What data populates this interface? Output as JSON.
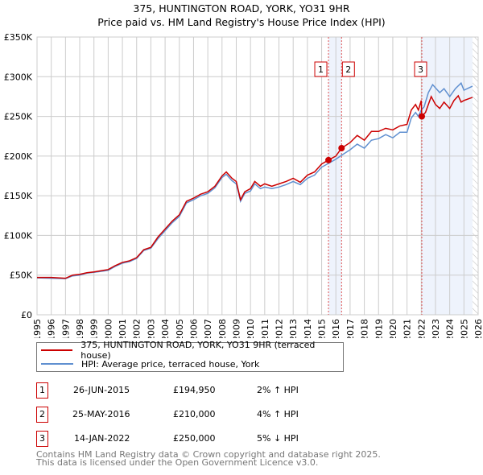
{
  "chart_data": {
    "type": "line",
    "title": "375, HUNTINGTON ROAD, YORK, YO31 9HR",
    "subtitle": "Price paid vs. HM Land Registry's House Price Index (HPI)",
    "xlim": [
      1995,
      2026
    ],
    "ylim": [
      0,
      350000
    ],
    "y_ticks": [
      0,
      50000,
      100000,
      150000,
      200000,
      250000,
      300000,
      350000
    ],
    "y_tick_labels": [
      "£0",
      "£50K",
      "£100K",
      "£150K",
      "£200K",
      "£250K",
      "£300K",
      "£350K"
    ],
    "x_ticks": [
      1995,
      1996,
      1997,
      1998,
      1999,
      2000,
      2001,
      2002,
      2003,
      2004,
      2005,
      2006,
      2007,
      2008,
      2009,
      2010,
      2011,
      2012,
      2013,
      2014,
      2015,
      2016,
      2017,
      2018,
      2019,
      2020,
      2021,
      2022,
      2023,
      2024,
      2025,
      2026
    ],
    "grid": true,
    "colors": {
      "property": "#cc0000",
      "hpi": "#6090d0",
      "shade": "#eef3fc"
    },
    "series": [
      {
        "name": "375, HUNTINGTON ROAD, YORK, YO31 9HR (terraced house)",
        "x": [
          1995,
          1996,
          1997,
          1997.5,
          1998,
          1998.5,
          1999,
          2000,
          2000.5,
          2001,
          2001.5,
          2002,
          2002.5,
          2003,
          2003.5,
          2004,
          2004.5,
          2005,
          2005.5,
          2006,
          2006.5,
          2007,
          2007.5,
          2008,
          2008.3,
          2008.7,
          2009,
          2009.3,
          2009.6,
          2010,
          2010.3,
          2010.7,
          2011,
          2011.5,
          2012,
          2012.5,
          2013,
          2013.5,
          2014,
          2014.5,
          2015,
          2015.48,
          2016,
          2016.4,
          2017,
          2017.5,
          2018,
          2018.5,
          2019,
          2019.5,
          2020,
          2020.5,
          2021,
          2021.3,
          2021.6,
          2021.8,
          2022.0,
          2022.04,
          2022.3,
          2022.7,
          2023,
          2023.3,
          2023.6,
          2024,
          2024.3,
          2024.6,
          2024.8,
          2025,
          2025.6
        ],
        "y": [
          47000,
          47000,
          46000,
          50000,
          51000,
          53000,
          54000,
          57000,
          62000,
          66000,
          68000,
          72000,
          82000,
          85000,
          98000,
          108000,
          118000,
          126000,
          143000,
          147000,
          152000,
          155000,
          162000,
          175000,
          180000,
          172000,
          168000,
          145000,
          155000,
          159000,
          168000,
          162000,
          165000,
          162000,
          165000,
          168000,
          172000,
          167000,
          176000,
          180000,
          190000,
          194950,
          200000,
          210000,
          217000,
          226000,
          220000,
          231000,
          231000,
          235000,
          233000,
          238000,
          240000,
          258000,
          265000,
          258000,
          270000,
          250000,
          255000,
          275000,
          265000,
          260000,
          268000,
          260000,
          270000,
          276000,
          268000,
          270000,
          274000
        ]
      },
      {
        "name": "HPI: Average price, terraced house, York",
        "x": [
          1995,
          1996,
          1997,
          1997.5,
          1998,
          1998.5,
          1999,
          2000,
          2000.5,
          2001,
          2001.5,
          2002,
          2002.5,
          2003,
          2003.5,
          2004,
          2004.5,
          2005,
          2005.5,
          2006,
          2006.5,
          2007,
          2007.5,
          2008,
          2008.3,
          2008.7,
          2009,
          2009.3,
          2009.6,
          2010,
          2010.3,
          2010.7,
          2011,
          2011.5,
          2012,
          2012.5,
          2013,
          2013.5,
          2014,
          2014.5,
          2015,
          2015.5,
          2016,
          2016.4,
          2017,
          2017.5,
          2018,
          2018.5,
          2019,
          2019.5,
          2020,
          2020.5,
          2021,
          2021.3,
          2021.6,
          2021.8,
          2022.0,
          2022.2,
          2022.5,
          2022.8,
          2023.3,
          2023.6,
          2024,
          2024.4,
          2024.8,
          2025,
          2025.6
        ],
        "y": [
          46500,
          46000,
          45500,
          49000,
          50000,
          52500,
          53500,
          56000,
          61000,
          65000,
          67000,
          71000,
          81000,
          84000,
          96000,
          106000,
          116000,
          124000,
          141000,
          145000,
          150000,
          153000,
          160000,
          173000,
          177000,
          169000,
          165000,
          143000,
          153000,
          156000,
          165000,
          159000,
          161000,
          159000,
          161000,
          164000,
          168000,
          164000,
          172000,
          176000,
          186000,
          191000,
          196000,
          201000,
          208000,
          215000,
          210000,
          220000,
          222000,
          227000,
          223000,
          230000,
          230000,
          248000,
          255000,
          250000,
          258000,
          262000,
          280000,
          290000,
          280000,
          285000,
          275000,
          285000,
          292000,
          283000,
          288000
        ]
      }
    ],
    "sales": [
      {
        "label": "1",
        "x": 2015.48,
        "date": "26-JUN-2015",
        "price": 194950,
        "price_text": "£194,950",
        "hpi_text": "2% ↑ HPI"
      },
      {
        "label": "2",
        "x": 2016.4,
        "date": "25-MAY-2016",
        "price": 210000,
        "price_text": "£210,000",
        "hpi_text": "4% ↑ HPI"
      },
      {
        "label": "3",
        "x": 2022.04,
        "date": "14-JAN-2022",
        "price": 250000,
        "price_text": "£250,000",
        "hpi_text": "5% ↓ HPI"
      }
    ],
    "shaded_ranges": [
      [
        2015.48,
        2016.4
      ],
      [
        2022.04,
        2025.6
      ]
    ],
    "forecast_from": 2025.6,
    "legend": {
      "placement": "bottom",
      "entries": [
        "375, HUNTINGTON ROAD, YORK, YO31 9HR (terraced house)",
        "HPI: Average price, terraced house, York"
      ]
    }
  },
  "footer": {
    "line1": "Contains HM Land Registry data © Crown copyright and database right 2025.",
    "line2": "This data is licensed under the Open Government Licence v3.0."
  }
}
